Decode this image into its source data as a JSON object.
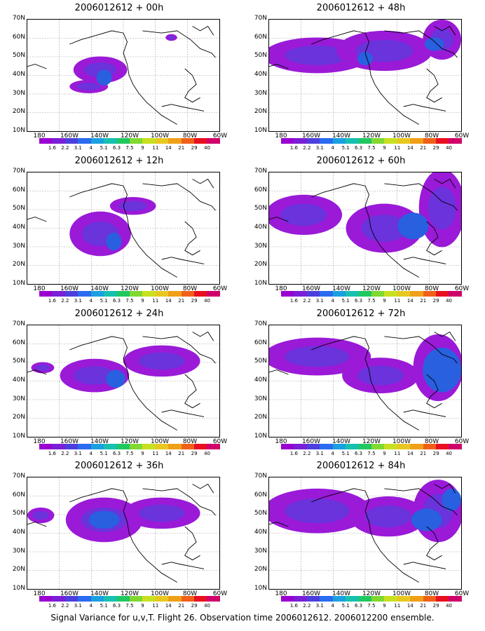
{
  "panels": [
    {
      "title": "2006012612 + 00h",
      "blobs": [
        [
          0.38,
          0.45,
          0.14,
          0.12
        ],
        [
          0.32,
          0.6,
          0.1,
          0.06
        ],
        [
          0.75,
          0.16,
          0.03,
          0.03
        ]
      ],
      "cores": [
        [
          0.4,
          0.52,
          0.04,
          0.07
        ]
      ]
    },
    {
      "title": "2006012612 + 48h",
      "blobs": [
        [
          0.25,
          0.32,
          0.28,
          0.16
        ],
        [
          0.6,
          0.28,
          0.25,
          0.18
        ],
        [
          0.9,
          0.18,
          0.1,
          0.18
        ]
      ],
      "cores": [
        [
          0.5,
          0.35,
          0.04,
          0.06
        ],
        [
          0.86,
          0.22,
          0.05,
          0.06
        ]
      ]
    },
    {
      "title": "2006012612 + 12h",
      "blobs": [
        [
          0.38,
          0.55,
          0.16,
          0.2
        ],
        [
          0.55,
          0.3,
          0.12,
          0.08
        ]
      ],
      "cores": [
        [
          0.45,
          0.62,
          0.04,
          0.08
        ]
      ]
    },
    {
      "title": "2006012612 + 60h",
      "blobs": [
        [
          0.18,
          0.38,
          0.2,
          0.18
        ],
        [
          0.6,
          0.5,
          0.2,
          0.22
        ],
        [
          0.9,
          0.32,
          0.12,
          0.35
        ]
      ],
      "cores": [
        [
          0.75,
          0.48,
          0.08,
          0.12
        ]
      ]
    },
    {
      "title": "2006012612 + 24h",
      "blobs": [
        [
          0.08,
          0.38,
          0.06,
          0.05
        ],
        [
          0.35,
          0.45,
          0.18,
          0.15
        ],
        [
          0.7,
          0.32,
          0.2,
          0.14
        ]
      ],
      "cores": [
        [
          0.46,
          0.48,
          0.05,
          0.08
        ]
      ]
    },
    {
      "title": "2006012612 + 72h",
      "blobs": [
        [
          0.25,
          0.28,
          0.28,
          0.17
        ],
        [
          0.58,
          0.45,
          0.2,
          0.16
        ],
        [
          0.88,
          0.38,
          0.13,
          0.3
        ]
      ],
      "cores": [
        [
          0.9,
          0.4,
          0.1,
          0.2
        ]
      ]
    },
    {
      "title": "2006012612 + 36h",
      "blobs": [
        [
          0.07,
          0.34,
          0.07,
          0.07
        ],
        [
          0.4,
          0.38,
          0.2,
          0.2
        ],
        [
          0.7,
          0.32,
          0.2,
          0.14
        ]
      ],
      "cores": [
        [
          0.4,
          0.38,
          0.08,
          0.08
        ]
      ]
    },
    {
      "title": "2006012612 + 84h",
      "blobs": [
        [
          0.25,
          0.3,
          0.28,
          0.2
        ],
        [
          0.62,
          0.35,
          0.2,
          0.18
        ],
        [
          0.88,
          0.3,
          0.13,
          0.28
        ]
      ],
      "cores": [
        [
          0.82,
          0.38,
          0.08,
          0.1
        ],
        [
          0.95,
          0.2,
          0.05,
          0.1
        ]
      ]
    }
  ],
  "lat_labels": [
    "70N",
    "60N",
    "50N",
    "40N",
    "30N",
    "20N",
    "10N"
  ],
  "lon_labels": [
    "180",
    "160W",
    "140W",
    "120W",
    "100W",
    "80W",
    "60W"
  ],
  "colorbar": {
    "labels": [
      "1.6",
      "2.2",
      "3.1",
      "4",
      "5.1",
      "6.3",
      "7.5",
      "9",
      "11",
      "14",
      "21",
      "29",
      "40"
    ],
    "colors": [
      "#9a00d2",
      "#7a1fd6",
      "#4b3fdd",
      "#2a6bf0",
      "#1aa0e0",
      "#18c0b0",
      "#20c860",
      "#80d830",
      "#c8e020",
      "#e8c820",
      "#f0a018",
      "#f06018",
      "#e81020",
      "#d0006a"
    ]
  },
  "fill_colors": {
    "outer": "#9a1ad8",
    "mid": "#6a33dc",
    "core": "#2860e0"
  },
  "caption": "Signal Variance for u,v,T. Flight 26. Observation time 2006012612. 2006012200 ensemble."
}
